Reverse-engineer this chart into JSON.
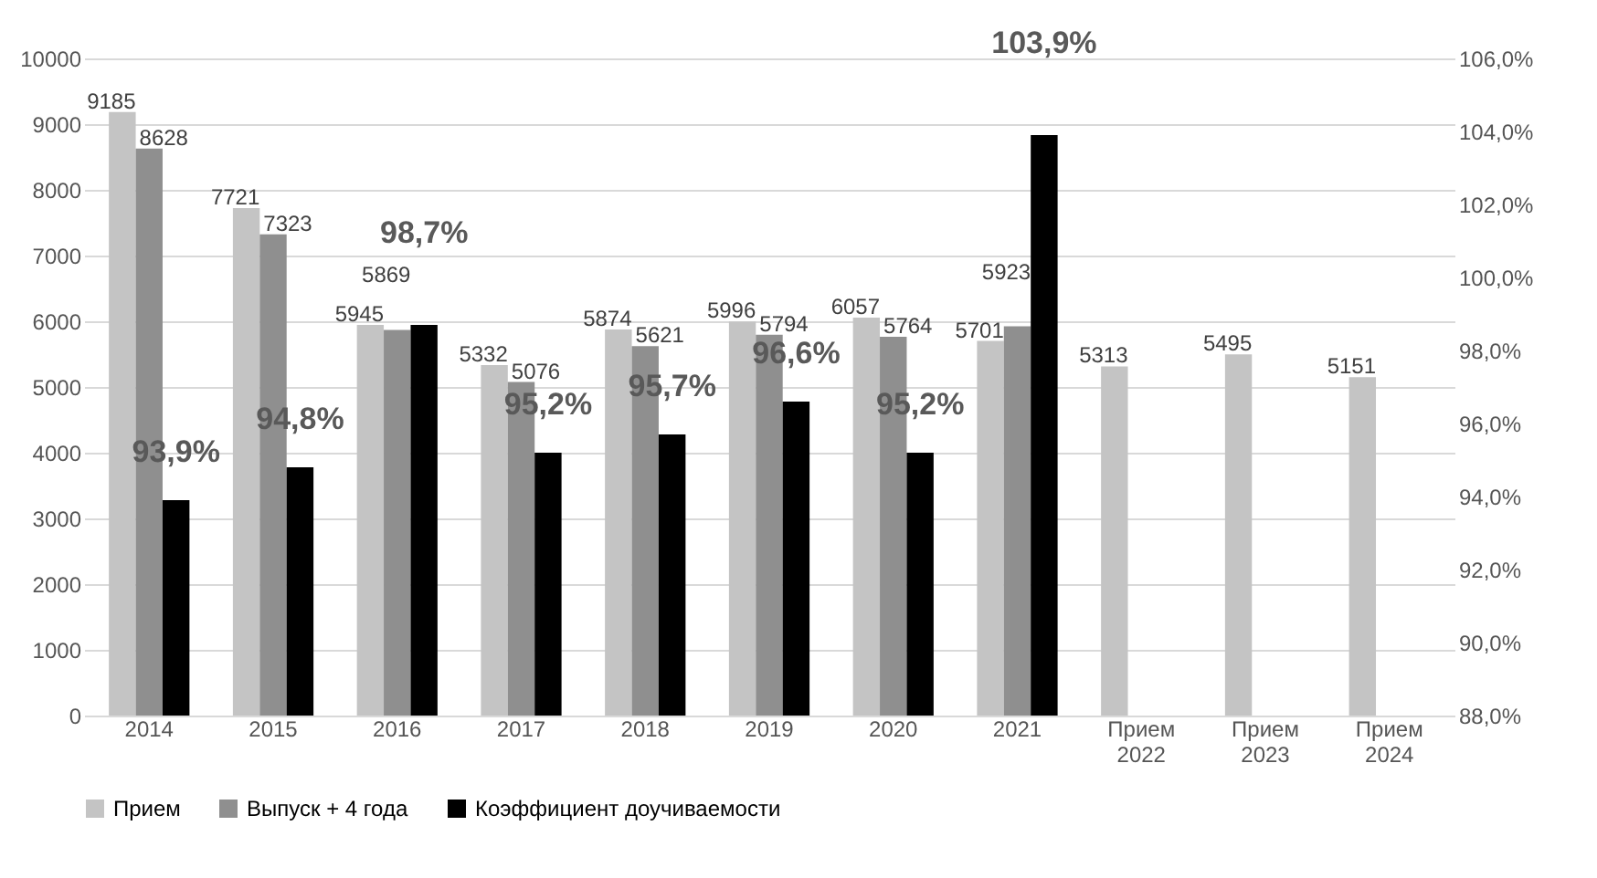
{
  "chart_data": {
    "type": "bar",
    "categories": [
      "2014",
      "2015",
      "2016",
      "2017",
      "2018",
      "2019",
      "2020",
      "2021",
      "Прием 2022",
      "Прием 2023",
      "Прием 2024"
    ],
    "series": [
      {
        "name": "Прием",
        "color": "#c4c4c4",
        "values": [
          9185,
          7721,
          5945,
          5332,
          5874,
          5996,
          6057,
          5701,
          5313,
          5495,
          5151
        ],
        "value_labels": [
          "9185",
          "7721",
          "5945",
          "5332",
          "5874",
          "5996",
          "6057",
          "5701",
          "5313",
          "5495",
          "5151"
        ]
      },
      {
        "name": "Выпуск + 4 года",
        "color": "#8f8f8f",
        "values": [
          8628,
          7323,
          5869,
          5076,
          5621,
          5794,
          5764,
          5923,
          null,
          null,
          null
        ],
        "value_labels": [
          "8628",
          "7323",
          "5869",
          "5076",
          "5621",
          "5794",
          "5764",
          "5923",
          null,
          null,
          null
        ]
      },
      {
        "name": "Коэффициент доучиваемости",
        "color": "#000000",
        "axis": "y2",
        "values": [
          93.9,
          94.8,
          98.7,
          95.2,
          95.7,
          96.6,
          95.2,
          103.9,
          null,
          null,
          null
        ],
        "value_labels": [
          "93,9%",
          "94,8%",
          "98,7%",
          "95,2%",
          "95,7%",
          "96,6%",
          "95,2%",
          "103,9%",
          null,
          null,
          null
        ]
      }
    ],
    "ylim": [
      0,
      10000
    ],
    "yticks": [
      0,
      1000,
      2000,
      3000,
      4000,
      5000,
      6000,
      7000,
      8000,
      9000,
      10000
    ],
    "y2lim": [
      88,
      106
    ],
    "y2ticks": [
      {
        "value": 88,
        "label": "88,0%"
      },
      {
        "value": 90,
        "label": "90,0%"
      },
      {
        "value": 92,
        "label": "92,0%"
      },
      {
        "value": 94,
        "label": "94,0%"
      },
      {
        "value": 96,
        "label": "96,0%"
      },
      {
        "value": 98,
        "label": "98,0%"
      },
      {
        "value": 100,
        "label": "100,0%"
      },
      {
        "value": 102,
        "label": "102,0%"
      },
      {
        "value": 104,
        "label": "104,0%"
      },
      {
        "value": 106,
        "label": "106,0%"
      }
    ],
    "grid": "y",
    "legend": "bottom"
  }
}
